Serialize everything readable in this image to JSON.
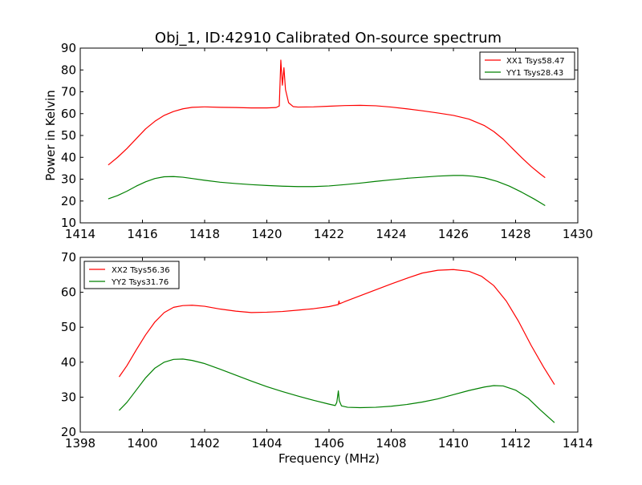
{
  "figure": {
    "title": "Obj_1, ID:42910 Calibrated On-source spectrum"
  },
  "colors": {
    "xx": "#ff0000",
    "yy": "#008000"
  },
  "chart_data": [
    {
      "type": "line",
      "title": "Obj_1, ID:42910 Calibrated On-source spectrum",
      "xlabel": "",
      "ylabel": "Power in Kelvin",
      "xlim": [
        1414,
        1430
      ],
      "ylim": [
        10,
        90
      ],
      "xticks": [
        "1414",
        "1416",
        "1418",
        "1420",
        "1422",
        "1424",
        "1426",
        "1428",
        "1430"
      ],
      "yticks": [
        "10",
        "20",
        "30",
        "40",
        "50",
        "60",
        "70",
        "80",
        "90"
      ],
      "grid": false,
      "legend_position": "top-right",
      "series": [
        {
          "name": "XX1 Tsys58.47",
          "color": "#ff0000",
          "points": [
            [
              1414.9,
              36.5
            ],
            [
              1415.2,
              40
            ],
            [
              1415.5,
              44
            ],
            [
              1415.8,
              48.5
            ],
            [
              1416.1,
              53
            ],
            [
              1416.4,
              56.5
            ],
            [
              1416.7,
              59.2
            ],
            [
              1417.0,
              61
            ],
            [
              1417.3,
              62.2
            ],
            [
              1417.6,
              62.9
            ],
            [
              1418.0,
              63.1
            ],
            [
              1418.5,
              62.9
            ],
            [
              1419.0,
              62.8
            ],
            [
              1419.5,
              62.6
            ],
            [
              1420.0,
              62.6
            ],
            [
              1420.3,
              62.8
            ],
            [
              1420.4,
              63.5
            ],
            [
              1420.45,
              84.5
            ],
            [
              1420.5,
              73
            ],
            [
              1420.55,
              81
            ],
            [
              1420.6,
              71
            ],
            [
              1420.7,
              65
            ],
            [
              1420.85,
              63.2
            ],
            [
              1421.0,
              63
            ],
            [
              1421.5,
              63.1
            ],
            [
              1422.0,
              63.4
            ],
            [
              1422.5,
              63.7
            ],
            [
              1423.0,
              63.8
            ],
            [
              1423.5,
              63.6
            ],
            [
              1424.0,
              63
            ],
            [
              1424.5,
              62.2
            ],
            [
              1425.0,
              61.3
            ],
            [
              1425.5,
              60.3
            ],
            [
              1426.0,
              59.2
            ],
            [
              1426.5,
              57.5
            ],
            [
              1427.0,
              54.5
            ],
            [
              1427.3,
              51.8
            ],
            [
              1427.6,
              48.3
            ],
            [
              1427.9,
              44
            ],
            [
              1428.2,
              39.8
            ],
            [
              1428.5,
              35.8
            ],
            [
              1428.8,
              32.3
            ],
            [
              1428.95,
              30.7
            ]
          ]
        },
        {
          "name": "YY1 Tsys28.43",
          "color": "#008000",
          "points": [
            [
              1414.9,
              21
            ],
            [
              1415.2,
              22.5
            ],
            [
              1415.5,
              24.5
            ],
            [
              1415.8,
              26.8
            ],
            [
              1416.1,
              28.8
            ],
            [
              1416.4,
              30.3
            ],
            [
              1416.7,
              31.1
            ],
            [
              1417.0,
              31.2
            ],
            [
              1417.3,
              30.9
            ],
            [
              1417.6,
              30.3
            ],
            [
              1418.0,
              29.5
            ],
            [
              1418.5,
              28.6
            ],
            [
              1419.0,
              28
            ],
            [
              1419.5,
              27.5
            ],
            [
              1420.0,
              27.1
            ],
            [
              1420.5,
              26.8
            ],
            [
              1421.0,
              26.6
            ],
            [
              1421.5,
              26.6
            ],
            [
              1422.0,
              26.9
            ],
            [
              1422.5,
              27.5
            ],
            [
              1423.0,
              28.2
            ],
            [
              1423.5,
              29
            ],
            [
              1424.0,
              29.7
            ],
            [
              1424.5,
              30.4
            ],
            [
              1425.0,
              30.9
            ],
            [
              1425.5,
              31.4
            ],
            [
              1426.0,
              31.7
            ],
            [
              1426.3,
              31.7
            ],
            [
              1426.6,
              31.4
            ],
            [
              1427.0,
              30.6
            ],
            [
              1427.4,
              29
            ],
            [
              1427.8,
              26.8
            ],
            [
              1428.2,
              24
            ],
            [
              1428.6,
              20.9
            ],
            [
              1428.95,
              17.9
            ]
          ]
        }
      ]
    },
    {
      "type": "line",
      "title": "",
      "xlabel": "Frequency (MHz)",
      "ylabel": "",
      "xlim": [
        1398,
        1414
      ],
      "ylim": [
        20,
        70
      ],
      "xticks": [
        "1398",
        "1400",
        "1402",
        "1404",
        "1406",
        "1408",
        "1410",
        "1412",
        "1414"
      ],
      "yticks": [
        "20",
        "30",
        "40",
        "50",
        "60",
        "70"
      ],
      "grid": false,
      "legend_position": "top-left",
      "series": [
        {
          "name": "XX2 Tsys56.36",
          "color": "#ff0000",
          "points": [
            [
              1399.25,
              35.8
            ],
            [
              1399.5,
              39
            ],
            [
              1399.8,
              43.5
            ],
            [
              1400.1,
              47.8
            ],
            [
              1400.4,
              51.5
            ],
            [
              1400.7,
              54.2
            ],
            [
              1401.0,
              55.7
            ],
            [
              1401.3,
              56.2
            ],
            [
              1401.6,
              56.3
            ],
            [
              1402.0,
              56
            ],
            [
              1402.5,
              55.2
            ],
            [
              1403.0,
              54.6
            ],
            [
              1403.5,
              54.2
            ],
            [
              1404.0,
              54.3
            ],
            [
              1404.5,
              54.5
            ],
            [
              1405.0,
              54.9
            ],
            [
              1405.5,
              55.3
            ],
            [
              1406.0,
              55.9
            ],
            [
              1406.3,
              56.5
            ],
            [
              1406.32,
              57.5
            ],
            [
              1406.34,
              56.7
            ],
            [
              1406.5,
              57.3
            ],
            [
              1407.0,
              59
            ],
            [
              1407.5,
              60.7
            ],
            [
              1408.0,
              62.4
            ],
            [
              1408.5,
              64
            ],
            [
              1409.0,
              65.5
            ],
            [
              1409.5,
              66.3
            ],
            [
              1410.0,
              66.5
            ],
            [
              1410.5,
              66
            ],
            [
              1410.9,
              64.6
            ],
            [
              1411.3,
              61.9
            ],
            [
              1411.7,
              57.5
            ],
            [
              1412.1,
              51.6
            ],
            [
              1412.5,
              44.8
            ],
            [
              1412.9,
              38.6
            ],
            [
              1413.25,
              33.6
            ]
          ]
        },
        {
          "name": "YY2 Tsys31.76",
          "color": "#008000",
          "points": [
            [
              1399.25,
              26.2
            ],
            [
              1399.5,
              28.5
            ],
            [
              1399.8,
              32
            ],
            [
              1400.1,
              35.5
            ],
            [
              1400.4,
              38.3
            ],
            [
              1400.7,
              40
            ],
            [
              1401.0,
              40.8
            ],
            [
              1401.3,
              40.9
            ],
            [
              1401.6,
              40.5
            ],
            [
              1402.0,
              39.6
            ],
            [
              1402.5,
              38
            ],
            [
              1403.0,
              36.3
            ],
            [
              1403.5,
              34.6
            ],
            [
              1404.0,
              33
            ],
            [
              1404.5,
              31.6
            ],
            [
              1405.0,
              30.3
            ],
            [
              1405.5,
              29.1
            ],
            [
              1406.0,
              28
            ],
            [
              1406.2,
              27.6
            ],
            [
              1406.25,
              28.5
            ],
            [
              1406.3,
              31.8
            ],
            [
              1406.33,
              29
            ],
            [
              1406.4,
              27.5
            ],
            [
              1406.6,
              27.1
            ],
            [
              1407.0,
              27
            ],
            [
              1407.5,
              27.1
            ],
            [
              1408.0,
              27.4
            ],
            [
              1408.5,
              27.9
            ],
            [
              1409.0,
              28.6
            ],
            [
              1409.5,
              29.5
            ],
            [
              1410.0,
              30.7
            ],
            [
              1410.5,
              31.9
            ],
            [
              1411.0,
              32.9
            ],
            [
              1411.3,
              33.3
            ],
            [
              1411.6,
              33.2
            ],
            [
              1412.0,
              32
            ],
            [
              1412.4,
              29.7
            ],
            [
              1412.8,
              26.3
            ],
            [
              1413.25,
              22.7
            ]
          ]
        }
      ]
    }
  ]
}
